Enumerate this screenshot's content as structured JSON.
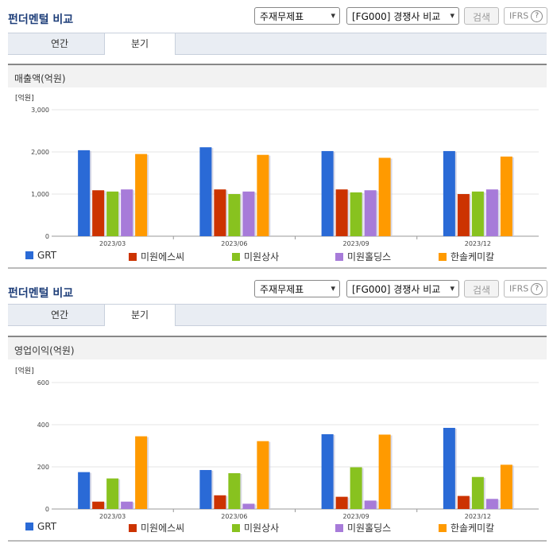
{
  "header": {
    "title": "펀더멘털 비교",
    "select_type": "주재무제표",
    "select_compare": "[FG000] 경쟁사 비교",
    "search_label": "검색",
    "ifrs_label": "IFRS",
    "help_label": "?"
  },
  "tabs": [
    {
      "label": "연간",
      "active": false
    },
    {
      "label": "분기",
      "active": true
    }
  ],
  "colors": {
    "GRT": "#2a6ad6",
    "미원에스씨": "#cc3300",
    "미원상사": "#88c21f",
    "미원홀딩스": "#a77bd9",
    "한솔케미칼": "#ff9a00"
  },
  "legend": [
    "GRT",
    "미원에스씨",
    "미원상사",
    "미원홀딩스",
    "한솔케미칼"
  ],
  "chart_data": [
    {
      "type": "bar",
      "title": "매출액(억원)",
      "ylabel": "[억원]",
      "ylim": [
        0,
        3000
      ],
      "yticks": [
        "0",
        "1,000",
        "2,000",
        "3,000"
      ],
      "categories": [
        "2023/03",
        "2023/06",
        "2023/09",
        "2023/12"
      ],
      "series": [
        {
          "name": "GRT",
          "values": [
            2040,
            2110,
            2020,
            2020
          ]
        },
        {
          "name": "미원에스씨",
          "values": [
            1090,
            1110,
            1110,
            1000
          ]
        },
        {
          "name": "미원상사",
          "values": [
            1060,
            1000,
            1040,
            1060
          ]
        },
        {
          "name": "미원홀딩스",
          "values": [
            1110,
            1060,
            1090,
            1110
          ]
        },
        {
          "name": "한솔케미칼",
          "values": [
            1950,
            1930,
            1860,
            1890
          ]
        }
      ]
    },
    {
      "type": "bar",
      "title": "영업이익(억원)",
      "ylabel": "[억원]",
      "ylim": [
        0,
        600
      ],
      "yticks": [
        "0",
        "200",
        "400",
        "600"
      ],
      "categories": [
        "2023/03",
        "2023/06",
        "2023/09",
        "2023/12"
      ],
      "series": [
        {
          "name": "GRT",
          "values": [
            175,
            185,
            355,
            385
          ]
        },
        {
          "name": "미원에스씨",
          "values": [
            35,
            65,
            58,
            62
          ]
        },
        {
          "name": "미원상사",
          "values": [
            145,
            170,
            198,
            152
          ]
        },
        {
          "name": "미원홀딩스",
          "values": [
            35,
            25,
            40,
            48
          ]
        },
        {
          "name": "한솔케미칼",
          "values": [
            345,
            322,
            353,
            210
          ]
        }
      ]
    }
  ]
}
